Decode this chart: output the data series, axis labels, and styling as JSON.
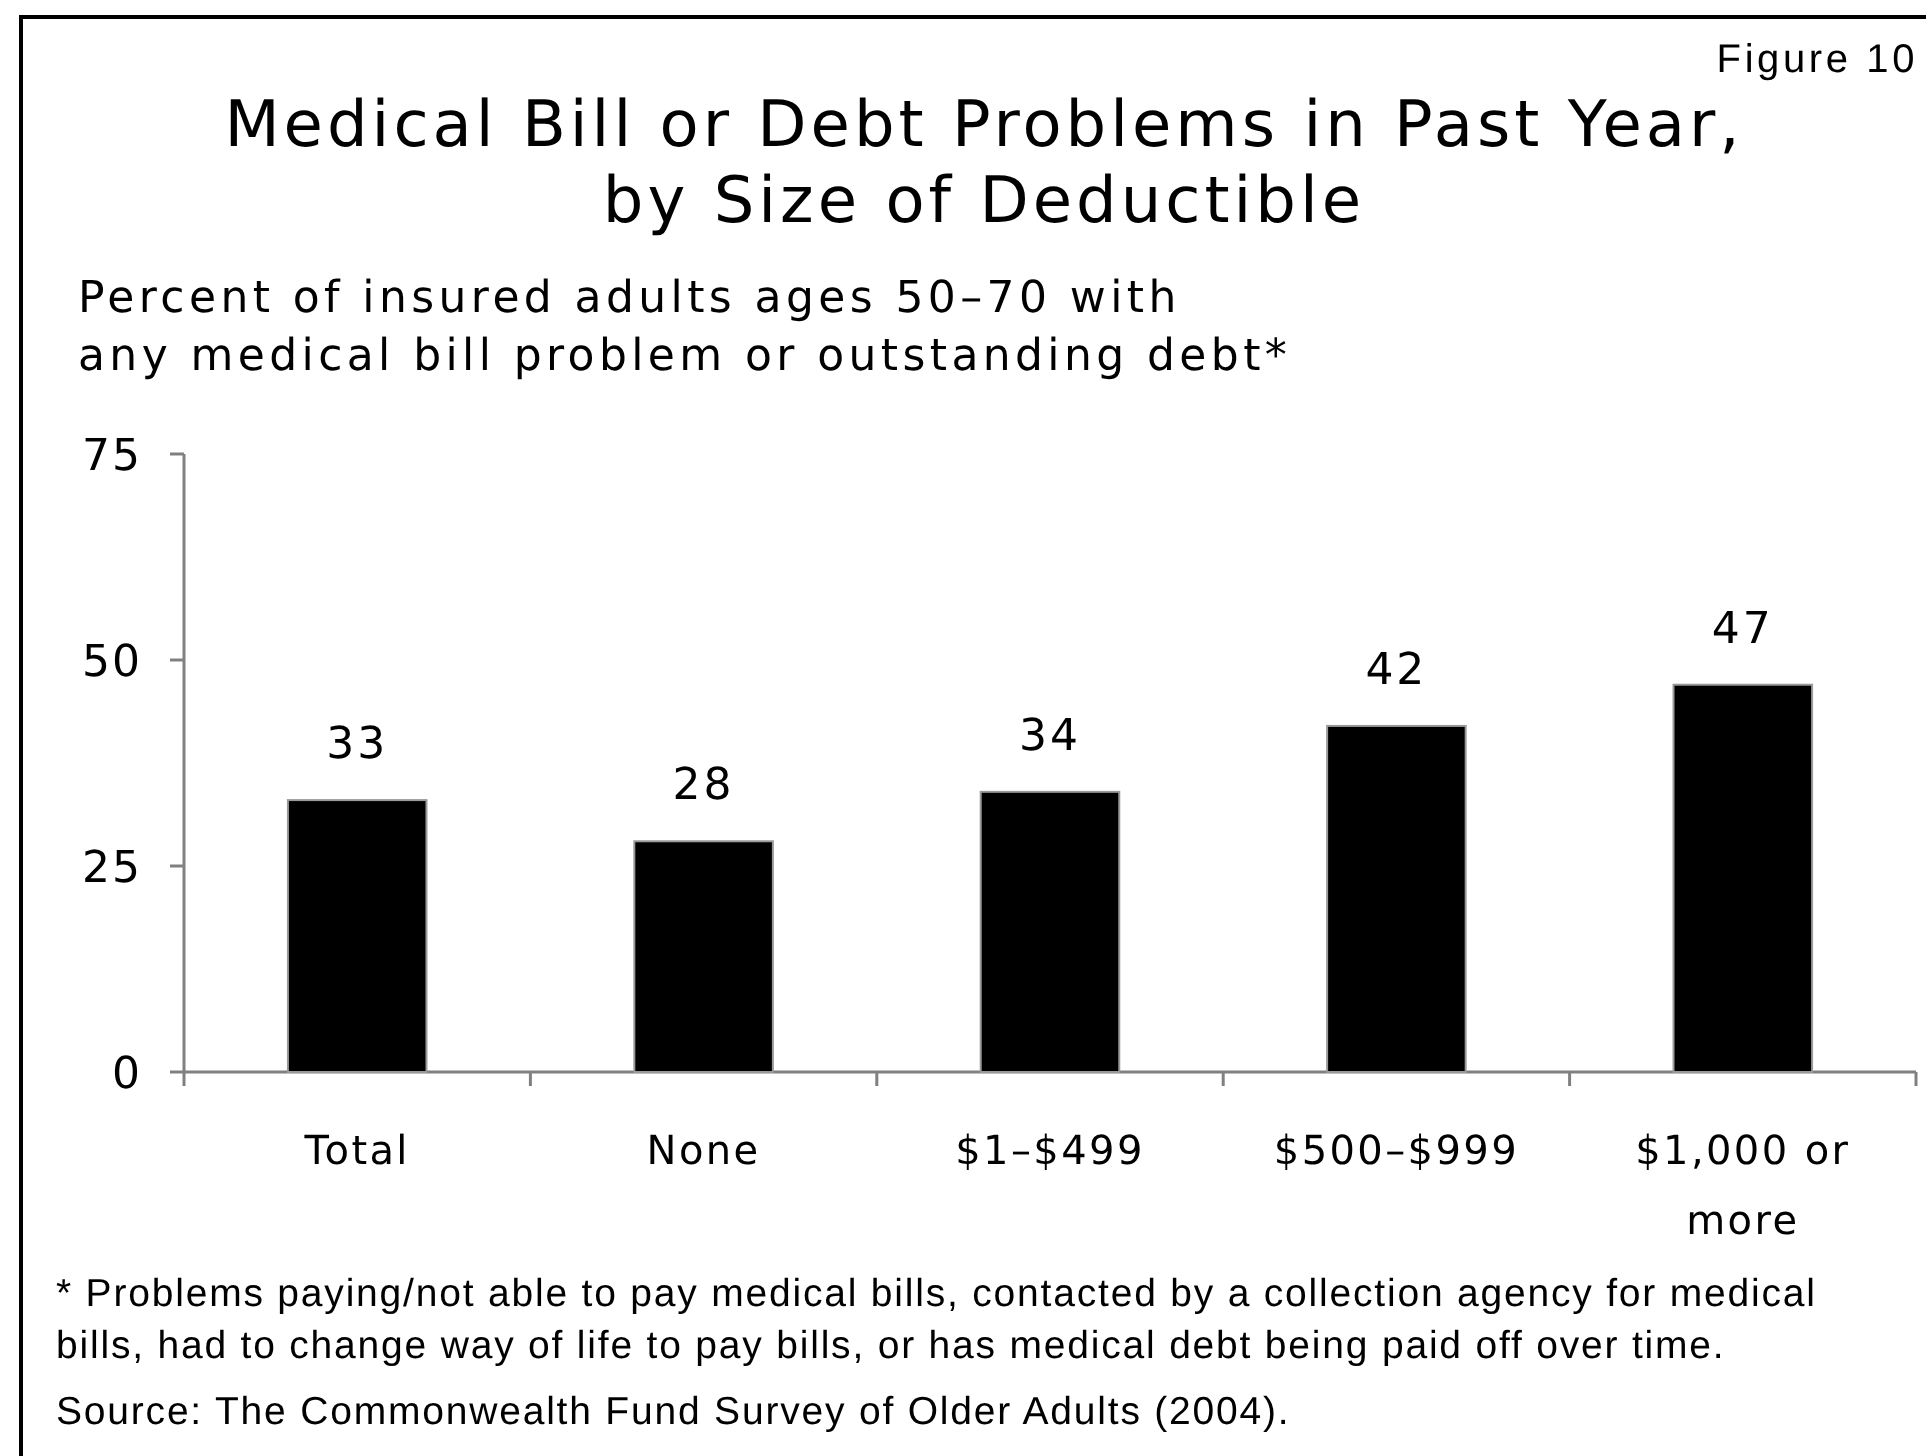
{
  "chart_data": {
    "type": "bar",
    "title": "Medical Bill or Debt Problems in Past Year, by Size of Deductible",
    "ylabel": "Percent of insured adults ages 50–70 with any medical bill problem or outstanding debt*",
    "categories": [
      "Total",
      "None",
      "$1–$499",
      "$500–$999",
      "$1,000 or more"
    ],
    "values": [
      33,
      28,
      34,
      42,
      47
    ],
    "color": "#000000",
    "ylim": [
      0,
      75
    ],
    "yticks": [
      0,
      25,
      50,
      75
    ],
    "grid": false,
    "data_labels": true,
    "annotations": [
      "Figure 10",
      "* Problems paying/not able to pay medical bills, contacted by a collection agency for medical bills, had to change way of life to pay bills, or has medical debt being paid off over time.",
      "Source: The Commonwealth Fund Survey of Older Adults (2004)."
    ]
  }
}
